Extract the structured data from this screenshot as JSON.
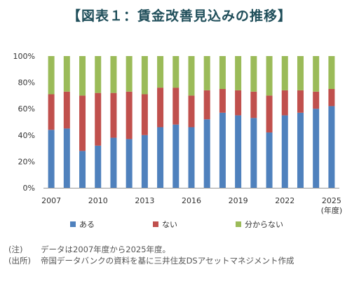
{
  "title": "【図表１：賃金改善見込みの推移】",
  "colors": {
    "ある": "#4f81bd",
    "ない": "#c0504d",
    "分からない": "#9bbb59"
  },
  "chart_data": {
    "type": "bar",
    "stacked": true,
    "title": "【図表１：賃金改善見込みの推移】",
    "ylim": [
      0,
      100
    ],
    "yticks": [
      "0%",
      "20%",
      "40%",
      "60%",
      "80%",
      "100%"
    ],
    "x_tick_labels": [
      "2007",
      "2010",
      "2013",
      "2016",
      "2019",
      "2022",
      "2025"
    ],
    "x_unit": "(年度)",
    "categories": [
      "2007",
      "2008",
      "2009",
      "2010",
      "2011",
      "2012",
      "2013",
      "2014",
      "2015",
      "2016",
      "2017",
      "2018",
      "2019",
      "2020",
      "2021",
      "2022",
      "2023",
      "2024",
      "2025"
    ],
    "series": [
      {
        "name": "ある",
        "values": [
          44,
          45,
          28,
          32,
          38,
          37,
          40,
          46,
          48,
          46,
          52,
          57,
          55,
          53,
          42,
          55,
          57,
          60,
          62
        ]
      },
      {
        "name": "ない",
        "values": [
          27,
          28,
          42,
          40,
          34,
          36,
          31,
          30,
          28,
          24,
          22,
          18,
          19,
          20,
          28,
          19,
          17,
          13,
          13
        ]
      },
      {
        "name": "分からない",
        "values": [
          29,
          27,
          30,
          28,
          28,
          27,
          29,
          24,
          24,
          30,
          26,
          25,
          26,
          27,
          30,
          26,
          26,
          27,
          25
        ]
      }
    ],
    "legend_position": "bottom",
    "grid": false
  },
  "notes": [
    {
      "label": "(注)",
      "text": "データは2007年度から2025年度。"
    },
    {
      "label": "(出所)",
      "text": "帝国データバンクの資料を基に三井住友DSアセットマネジメント作成"
    }
  ]
}
